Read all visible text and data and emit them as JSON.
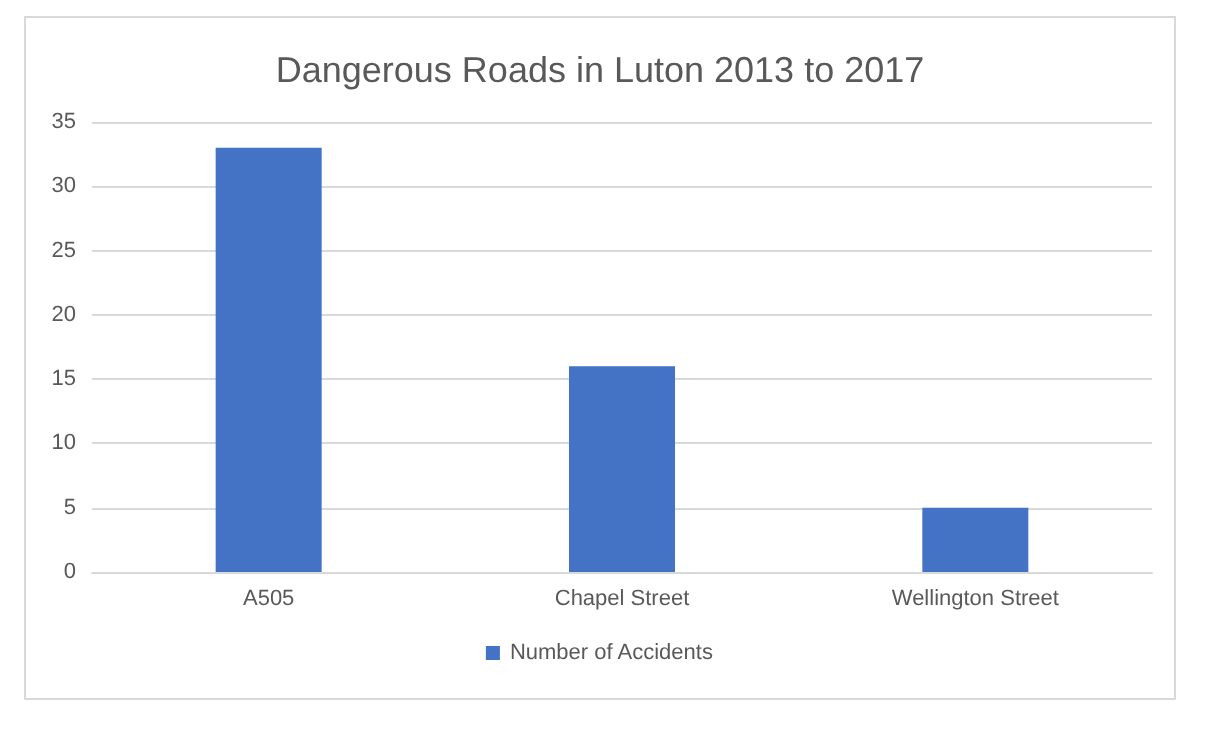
{
  "chart_data": {
    "type": "bar",
    "title": "Dangerous Roads in Luton 2013 to 2017",
    "categories": [
      "A505",
      "Chapel Street",
      "Wellington Street"
    ],
    "series": [
      {
        "name": "Number of Accidents",
        "color": "#4472c4",
        "values": [
          33,
          16,
          5
        ]
      }
    ],
    "ylim": [
      0,
      35
    ],
    "yticks": [
      0,
      5,
      10,
      15,
      20,
      25,
      30,
      35
    ],
    "grid": "y",
    "legend": "bottom"
  }
}
